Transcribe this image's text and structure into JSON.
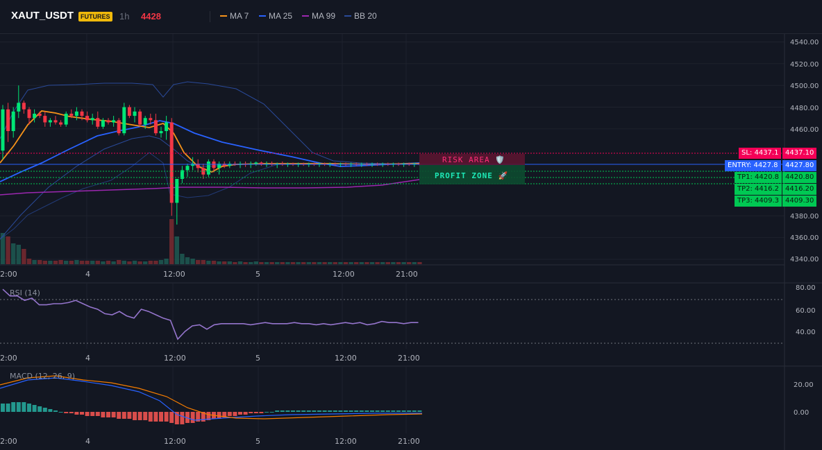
{
  "header": {
    "symbol": "XAUT_USDT",
    "badge": "FUTURES",
    "interval": "1h",
    "last_price": "4428",
    "legend": [
      {
        "label": "MA 7",
        "color": "#f7931a"
      },
      {
        "label": "MA 25",
        "color": "#2962ff"
      },
      {
        "label": "MA 99",
        "color": "#9c27b0"
      },
      {
        "label": "BB 20",
        "color": "#2a4a9a"
      }
    ]
  },
  "price_axis": {
    "ticks": [
      "4540.00",
      "4520.00",
      "4500.00",
      "4480.00",
      "4460.00",
      "4380.00",
      "4360.00",
      "4340.00"
    ],
    "tick_values": [
      4540,
      4520,
      4500,
      4480,
      4460,
      4380,
      4360,
      4340
    ]
  },
  "time_axis": {
    "labels": [
      "2:00",
      "4",
      "12:00",
      "5",
      "12:00",
      "21:00"
    ]
  },
  "zones": {
    "risk_label": "RISK AREA 🛡️",
    "profit_label": "PROFIT ZONE 🚀"
  },
  "levels": {
    "sl_left": "SL: 4437.1",
    "sl_right": "4437.10",
    "entry_left": "ENTRY: 4427.8",
    "entry_right": "4427.80",
    "tp1_left": "TP1: 4420.8",
    "tp1_right": "4420.80",
    "tp2_left": "TP2: 4416.2",
    "tp2_right": "4416.20",
    "tp3_left": "TP3: 4409.3",
    "tp3_right": "4409.30"
  },
  "rsi": {
    "label": "RSI (14)",
    "ticks": [
      "80.00",
      "60.00",
      "40.00"
    ]
  },
  "macd": {
    "label": "MACD (12, 26, 9)",
    "ticks": [
      "20.00",
      "0.00"
    ]
  },
  "colors": {
    "up": "#26a69a",
    "up_bright": "#00e676",
    "down": "#f23645",
    "ma7": "#f7931a",
    "ma25": "#2962ff",
    "ma99": "#9c27b0",
    "bb": "#2a4a9a",
    "rsi": "#9575cd",
    "sl": "#f50057",
    "entry": "#2962ff",
    "tp": "#00c853"
  },
  "chart_data": [
    {
      "type": "candlestick",
      "title": "XAUT_USDT 1h",
      "ylim": [
        4330,
        4545
      ],
      "x_labels": [
        "2:00",
        "4",
        "12:00",
        "5",
        "12:00",
        "21:00"
      ],
      "levels": {
        "SL": 4437.1,
        "ENTRY": 4427.8,
        "TP1": 4420.8,
        "TP2": 4416.2,
        "TP3": 4409.3
      }
    },
    {
      "type": "line",
      "name": "RSI (14)",
      "ylim": [
        30,
        85
      ],
      "y": [
        78,
        72,
        72,
        68,
        70,
        64,
        64,
        65,
        65,
        66,
        68,
        65,
        62,
        60,
        56,
        55,
        58,
        54,
        52,
        60,
        58,
        55,
        52,
        50,
        33,
        40,
        45,
        46,
        42,
        46,
        47,
        47,
        47,
        47,
        46,
        47,
        48,
        47,
        47,
        47,
        48,
        47,
        47,
        46,
        47,
        46,
        47,
        48,
        47,
        48,
        46,
        47,
        49,
        48,
        48,
        47,
        48,
        48
      ]
    },
    {
      "type": "bar",
      "name": "MACD (12, 26, 9)",
      "ylim": [
        -12,
        28
      ]
    }
  ]
}
